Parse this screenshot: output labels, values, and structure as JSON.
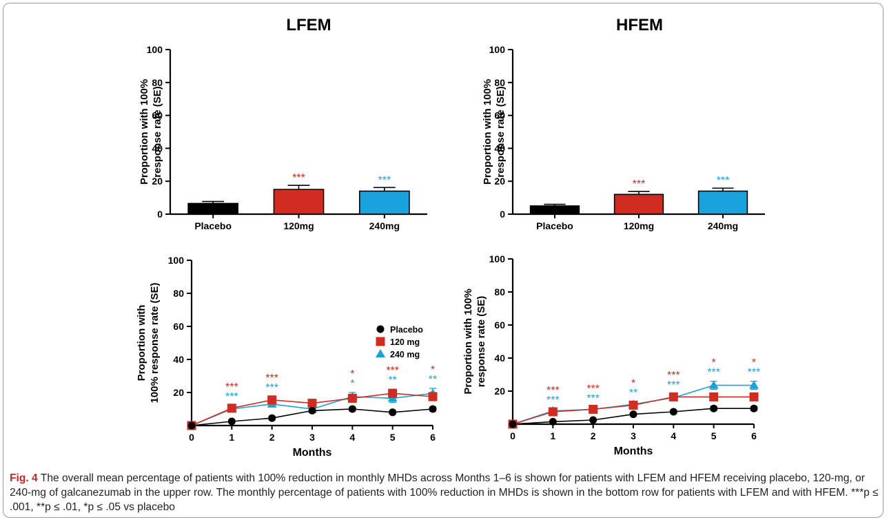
{
  "colors": {
    "placebo": "#000000",
    "mg120": "#d02c22",
    "mg240": "#1aa2dd",
    "caption_label": "#c62828"
  },
  "panel_titles": {
    "left": "LFEM",
    "right": "HFEM"
  },
  "caption": {
    "label": "Fig. 4",
    "text": "The overall mean percentage of patients with 100% reduction in monthly MHDs across Months 1–6 is shown for patients with LFEM and HFEM receiving placebo, 120-mg, or 240-mg of galcanezumab in the upper row. The monthly percentage of patients with 100% reduction in MHDs is shown in the bottom row for patients with LFEM and with HFEM. ***p ≤ .001, **p ≤ .01, *p ≤ .05 vs placebo"
  },
  "chart_data": [
    {
      "id": "lfem-bar",
      "type": "bar",
      "ylabel": [
        "Proportion with 100%",
        "response rate (SE)"
      ],
      "xlabel": "",
      "ylim": [
        0,
        100
      ],
      "yticks": [
        0,
        20,
        40,
        60,
        80,
        100
      ],
      "categories": [
        "Placebo",
        "120mg",
        "240mg"
      ],
      "values": [
        6.5,
        15,
        14
      ],
      "errors": [
        1.2,
        2.5,
        2.2
      ],
      "bar_colors": [
        "#000000",
        "#d02c22",
        "#1aa2dd"
      ],
      "annotations": [
        "",
        "***",
        "***"
      ]
    },
    {
      "id": "hfem-bar",
      "type": "bar",
      "ylabel": [
        "Proportion with 100%",
        "response rate (SE)"
      ],
      "xlabel": "",
      "ylim": [
        0,
        100
      ],
      "yticks": [
        0,
        20,
        40,
        60,
        80,
        100
      ],
      "categories": [
        "Placebo",
        "120mg",
        "240mg"
      ],
      "values": [
        5,
        12,
        14
      ],
      "errors": [
        1,
        1.8,
        1.8
      ],
      "bar_colors": [
        "#000000",
        "#d02c22",
        "#1aa2dd"
      ],
      "annotations": [
        "",
        "***",
        "***"
      ]
    },
    {
      "id": "lfem-line",
      "type": "line",
      "ylabel": [
        "Proportion with",
        "100% response rate (SE)"
      ],
      "xlabel": "Months",
      "ylim": [
        0,
        100
      ],
      "yticks": [
        20,
        40,
        60,
        80,
        100
      ],
      "xticks": [
        0,
        1,
        2,
        3,
        4,
        5,
        6
      ],
      "x": [
        0,
        1,
        2,
        3,
        4,
        5,
        6
      ],
      "series": [
        {
          "name": "Placebo",
          "key": "placebo",
          "marker": "circle",
          "values": [
            0,
            2.5,
            4.5,
            9,
            10,
            8,
            10
          ],
          "errors": [
            0,
            0.8,
            1,
            1.2,
            1.2,
            1.1,
            1.2
          ]
        },
        {
          "name": "120 mg",
          "key": "mg120",
          "marker": "square",
          "values": [
            0,
            10.5,
            15.5,
            13.5,
            16.5,
            19.5,
            17.5
          ],
          "errors": [
            0,
            1.5,
            2,
            1.8,
            2,
            2.5,
            2.5
          ]
        },
        {
          "name": "240 mg",
          "key": "mg240",
          "marker": "triangle",
          "values": [
            0,
            10,
            13,
            10,
            17.5,
            16.5,
            19.5
          ],
          "errors": [
            0,
            1.5,
            1.8,
            1.5,
            2.5,
            2.5,
            3
          ]
        }
      ],
      "legend_position": "center-right",
      "annotations": [
        {
          "x": 1,
          "red": "***",
          "blue": "***"
        },
        {
          "x": 2,
          "red": "***",
          "blue": "***"
        },
        {
          "x": 4,
          "red": "*",
          "blue": "*"
        },
        {
          "x": 5,
          "red": "***",
          "blue": "**"
        },
        {
          "x": 6,
          "red": "*",
          "blue": "**"
        }
      ]
    },
    {
      "id": "hfem-line",
      "type": "line",
      "ylabel": [
        "Proportion with 100%",
        "response rate (SE)"
      ],
      "xlabel": "Months",
      "ylim": [
        0,
        100
      ],
      "yticks": [
        20,
        40,
        60,
        80,
        100
      ],
      "xticks": [
        0,
        1,
        2,
        3,
        4,
        5,
        6
      ],
      "x": [
        0,
        1,
        2,
        3,
        4,
        5,
        6
      ],
      "series": [
        {
          "name": "Placebo",
          "key": "placebo",
          "marker": "circle",
          "values": [
            0,
            1.5,
            2.5,
            6,
            7.5,
            9.5,
            9.5
          ],
          "errors": [
            0,
            0.6,
            0.7,
            1,
            1,
            1.2,
            1.2
          ]
        },
        {
          "name": "120 mg",
          "key": "mg120",
          "marker": "square",
          "values": [
            0,
            7.5,
            9,
            11.5,
            16.5,
            16.5,
            16.5
          ],
          "errors": [
            0,
            1.2,
            1.3,
            1.5,
            1.8,
            2,
            2
          ]
        },
        {
          "name": "240 mg",
          "key": "mg240",
          "marker": "triangle",
          "values": [
            0,
            8,
            9,
            12,
            16,
            23.5,
            23.5
          ],
          "errors": [
            0,
            1.2,
            1.3,
            1.6,
            1.8,
            2.5,
            2.5
          ]
        }
      ],
      "annotations": [
        {
          "x": 1,
          "red": "***",
          "blue": "***"
        },
        {
          "x": 2,
          "red": "***",
          "blue": "***"
        },
        {
          "x": 3,
          "red": "*",
          "blue": "**"
        },
        {
          "x": 4,
          "red": "***",
          "blue": "***"
        },
        {
          "x": 5,
          "red": "*",
          "blue": "***"
        },
        {
          "x": 6,
          "red": "*",
          "blue": "***"
        }
      ]
    }
  ]
}
